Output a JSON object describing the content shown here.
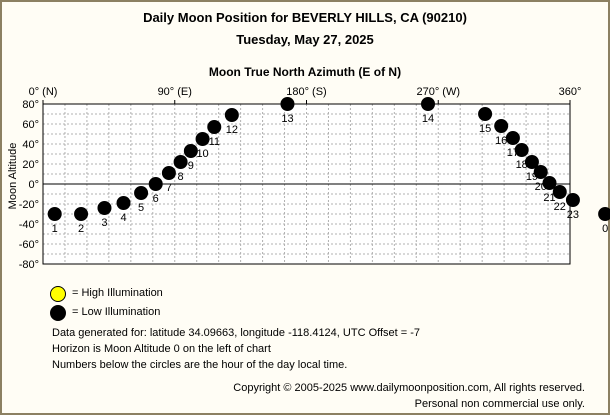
{
  "title": "Daily Moon Position for BEVERLY HILLS, CA (90210)",
  "subtitle": "Tuesday, May 27, 2025",
  "chart_data": {
    "type": "scatter",
    "xlabel": "Moon True North Azimuth (E of N)",
    "ylabel": "Moon Altitude",
    "xlim": [
      0,
      360
    ],
    "ylim": [
      -80,
      80
    ],
    "x_ticks": [
      {
        "value": 0,
        "label": "0° (N)"
      },
      {
        "value": 90,
        "label": "90° (E)"
      },
      {
        "value": 180,
        "label": "180° (S)"
      },
      {
        "value": 270,
        "label": "270° (W)"
      },
      {
        "value": 360,
        "label": "360°"
      }
    ],
    "y_ticks": [
      {
        "value": 80,
        "label": "80°"
      },
      {
        "value": 60,
        "label": "60°"
      },
      {
        "value": 40,
        "label": "40°"
      },
      {
        "value": 20,
        "label": "20°"
      },
      {
        "value": 0,
        "label": "0°"
      },
      {
        "value": -20,
        "label": "-20°"
      },
      {
        "value": -40,
        "label": "-40°"
      },
      {
        "value": -60,
        "label": "-60°"
      },
      {
        "value": -80,
        "label": "-80°"
      }
    ],
    "grid": true,
    "points": [
      {
        "hour": "1",
        "azimuth": 8,
        "altitude": -30
      },
      {
        "hour": "2",
        "azimuth": 26,
        "altitude": -30
      },
      {
        "hour": "3",
        "azimuth": 42,
        "altitude": -24
      },
      {
        "hour": "4",
        "azimuth": 55,
        "altitude": -19
      },
      {
        "hour": "5",
        "azimuth": 67,
        "altitude": -9
      },
      {
        "hour": "6",
        "azimuth": 77,
        "altitude": 0
      },
      {
        "hour": "7",
        "azimuth": 86,
        "altitude": 11
      },
      {
        "hour": "8",
        "azimuth": 94,
        "altitude": 22
      },
      {
        "hour": "9",
        "azimuth": 101,
        "altitude": 33
      },
      {
        "hour": "10",
        "azimuth": 109,
        "altitude": 45
      },
      {
        "hour": "11",
        "azimuth": 117,
        "altitude": 57
      },
      {
        "hour": "12",
        "azimuth": 129,
        "altitude": 69
      },
      {
        "hour": "13",
        "azimuth": 167,
        "altitude": 80
      },
      {
        "hour": "14",
        "azimuth": 263,
        "altitude": 80
      },
      {
        "hour": "15",
        "azimuth": 302,
        "altitude": 70
      },
      {
        "hour": "16",
        "azimuth": 313,
        "altitude": 58
      },
      {
        "hour": "17",
        "azimuth": 321,
        "altitude": 46
      },
      {
        "hour": "18",
        "azimuth": 327,
        "altitude": 34
      },
      {
        "hour": "19",
        "azimuth": 334,
        "altitude": 22
      },
      {
        "hour": "20",
        "azimuth": 340,
        "altitude": 12
      },
      {
        "hour": "21",
        "azimuth": 346,
        "altitude": 1
      },
      {
        "hour": "22",
        "azimuth": 353,
        "altitude": -8
      },
      {
        "hour": "23",
        "azimuth": 362,
        "altitude": -16
      },
      {
        "hour": "0",
        "azimuth": 384,
        "altitude": -30
      }
    ],
    "illumination": "low",
    "colors": {
      "high": "#ffff00",
      "low": "#000000",
      "axis": "#000000",
      "grid": "#b0b0b0"
    }
  },
  "legend": {
    "high_label": "= High Illumination",
    "low_label": "= Low Illumination"
  },
  "info": {
    "line1": "Data generated for: latitude 34.09663, longitude -118.4124, UTC Offset = -7",
    "line2": "Horizon is Moon Altitude 0 on the left of chart",
    "line3": "Numbers below the circles are the hour of the day local time."
  },
  "copyright": {
    "line1": "Copyright © 2005-2025 www.dailymoonposition.com, All rights reserved.",
    "line2": "Personal non commercial use only."
  }
}
